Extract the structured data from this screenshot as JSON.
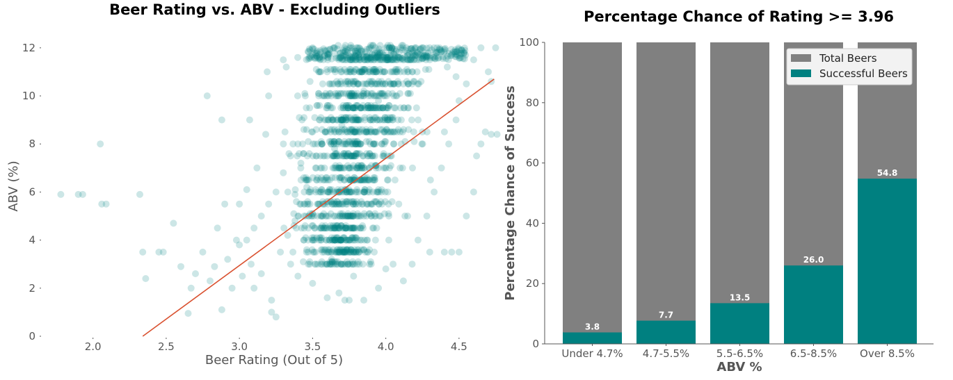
{
  "chart_data": [
    {
      "type": "scatter",
      "title": "Beer Rating vs. ABV - Excluding Outliers",
      "xlabel": "Beer Rating (Out of 5)",
      "ylabel": "ABV (%)",
      "xlim": [
        1.65,
        4.8
      ],
      "ylim": [
        0,
        12.4
      ],
      "xticks": [
        "2.0",
        "2.5",
        "3.0",
        "3.5",
        "4.0",
        "4.5"
      ],
      "yticks": [
        "0",
        "2",
        "4",
        "6",
        "8",
        "10",
        "12"
      ],
      "point_color": "#008080",
      "trend_color": "#d9502f",
      "trendline": {
        "x": [
          2.34,
          4.74
        ],
        "y": [
          0,
          10.7
        ]
      },
      "points": [
        [
          1.78,
          5.9
        ],
        [
          1.9,
          5.9
        ],
        [
          1.93,
          5.9
        ],
        [
          2.05,
          8.0
        ],
        [
          2.06,
          5.5
        ],
        [
          2.09,
          5.5
        ],
        [
          2.32,
          5.9
        ],
        [
          2.34,
          3.5
        ],
        [
          2.36,
          2.4
        ],
        [
          2.45,
          3.5
        ],
        [
          2.48,
          3.5
        ],
        [
          2.55,
          4.7
        ],
        [
          2.6,
          2.9
        ],
        [
          2.65,
          0.95
        ],
        [
          2.67,
          2.0
        ],
        [
          2.7,
          2.6
        ],
        [
          2.75,
          3.5
        ],
        [
          2.78,
          10.0
        ],
        [
          2.8,
          2.3
        ],
        [
          2.83,
          2.9
        ],
        [
          2.85,
          4.5
        ],
        [
          2.88,
          9.0
        ],
        [
          2.88,
          1.1
        ],
        [
          2.9,
          5.5
        ],
        [
          2.92,
          3.2
        ],
        [
          2.95,
          2.0
        ],
        [
          2.98,
          4.0
        ],
        [
          3.0,
          5.5
        ],
        [
          3.02,
          2.5
        ],
        [
          3.05,
          6.1
        ],
        [
          3.07,
          9.0
        ],
        [
          3.08,
          3.0
        ],
        [
          3.1,
          2.0
        ],
        [
          3.12,
          7.0
        ],
        [
          3.15,
          2.6
        ],
        [
          3.18,
          8.4
        ],
        [
          3.19,
          11.0
        ],
        [
          3.2,
          10.0
        ],
        [
          3.22,
          1.5
        ],
        [
          3.22,
          1.0
        ],
        [
          3.25,
          0.8
        ],
        [
          3.3,
          11.5
        ],
        [
          3.32,
          11.2
        ],
        [
          3.35,
          3.0
        ],
        [
          3.38,
          5.9
        ],
        [
          3.4,
          2.5
        ],
        [
          3.42,
          7.2
        ],
        [
          3.48,
          3.1
        ],
        [
          3.5,
          2.2
        ],
        [
          3.55,
          9.0
        ],
        [
          3.6,
          1.6
        ],
        [
          3.62,
          4.5
        ],
        [
          3.63,
          3.2
        ],
        [
          3.66,
          3.5
        ],
        [
          3.68,
          1.8
        ],
        [
          3.72,
          1.5
        ],
        [
          3.75,
          1.5
        ],
        [
          3.78,
          2.5
        ],
        [
          3.85,
          1.5
        ],
        [
          3.9,
          3.0
        ],
        [
          3.95,
          2.0
        ],
        [
          4.0,
          2.8
        ],
        [
          4.05,
          3.0
        ],
        [
          4.12,
          2.3
        ],
        [
          4.18,
          3.0
        ],
        [
          4.3,
          3.5
        ],
        [
          4.4,
          3.5
        ],
        [
          4.45,
          3.5
        ],
        [
          4.5,
          3.5
        ],
        [
          4.55,
          5.0
        ],
        [
          4.6,
          6.0
        ],
        [
          4.62,
          7.5
        ],
        [
          4.65,
          8.0
        ],
        [
          4.68,
          8.5
        ],
        [
          4.72,
          8.4
        ],
        [
          4.76,
          8.4
        ],
        [
          4.7,
          11.0
        ],
        [
          4.72,
          10.6
        ],
        [
          4.75,
          12.0
        ],
        [
          4.65,
          12.0
        ],
        [
          4.6,
          11.5
        ],
        [
          4.55,
          10.5
        ],
        [
          4.5,
          9.8
        ],
        [
          3.5,
          12.0
        ],
        [
          3.55,
          11.5
        ],
        [
          3.6,
          11.0
        ],
        [
          3.65,
          12.0
        ],
        [
          3.7,
          10.5
        ],
        [
          3.8,
          12.0
        ],
        [
          3.9,
          11.5
        ],
        [
          4.0,
          12.0
        ],
        [
          4.1,
          11.0
        ],
        [
          4.2,
          12.0
        ],
        [
          4.3,
          11.5
        ],
        [
          4.35,
          12.0
        ],
        [
          4.42,
          11.2
        ],
        [
          4.48,
          10.8
        ],
        [
          3.45,
          10.0
        ],
        [
          3.48,
          9.5
        ],
        [
          3.5,
          8.5
        ],
        [
          3.4,
          8.0
        ],
        [
          3.35,
          7.5
        ],
        [
          3.3,
          6.8
        ],
        [
          3.25,
          6.0
        ],
        [
          3.2,
          5.5
        ],
        [
          3.15,
          5.0
        ],
        [
          3.1,
          4.5
        ],
        [
          3.05,
          4.0
        ],
        [
          3.0,
          3.8
        ],
        [
          3.28,
          3.5
        ],
        [
          3.33,
          4.2
        ],
        [
          3.38,
          4.8
        ],
        [
          3.42,
          5.5
        ],
        [
          3.46,
          6.2
        ],
        [
          3.52,
          7.0
        ],
        [
          4.22,
          4.0
        ],
        [
          4.28,
          5.0
        ],
        [
          4.33,
          6.0
        ],
        [
          4.38,
          7.0
        ],
        [
          4.43,
          8.0
        ],
        [
          4.48,
          9.0
        ],
        [
          4.25,
          8.5
        ],
        [
          4.15,
          9.5
        ],
        [
          4.05,
          10.5
        ],
        [
          3.95,
          9.8
        ],
        [
          3.85,
          10.2
        ],
        [
          3.75,
          9.6
        ],
        [
          3.7,
          8.8
        ],
        [
          3.65,
          7.8
        ]
      ]
    },
    {
      "type": "bar",
      "title": "Percentage Chance of Rating >= 3.96",
      "xlabel": "ABV %",
      "ylabel": "Percentage Chance of Success",
      "ylim": [
        0,
        100
      ],
      "yticks": [
        "0",
        "20",
        "40",
        "60",
        "80",
        "100"
      ],
      "categories": [
        "Under 4.7%",
        "4.7-5.5%",
        "5.5-6.5%",
        "6.5-8.5%",
        "Over 8.5%"
      ],
      "series": [
        {
          "name": "Total Beers",
          "color": "#808080",
          "values": [
            100,
            100,
            100,
            100,
            100
          ]
        },
        {
          "name": "Successful Beers",
          "color": "#008080",
          "values": [
            3.8,
            7.7,
            13.5,
            26.0,
            54.8
          ]
        }
      ],
      "data_labels": [
        "3.8",
        "7.7",
        "13.5",
        "26.0",
        "54.8"
      ],
      "legend": "top-right"
    }
  ]
}
